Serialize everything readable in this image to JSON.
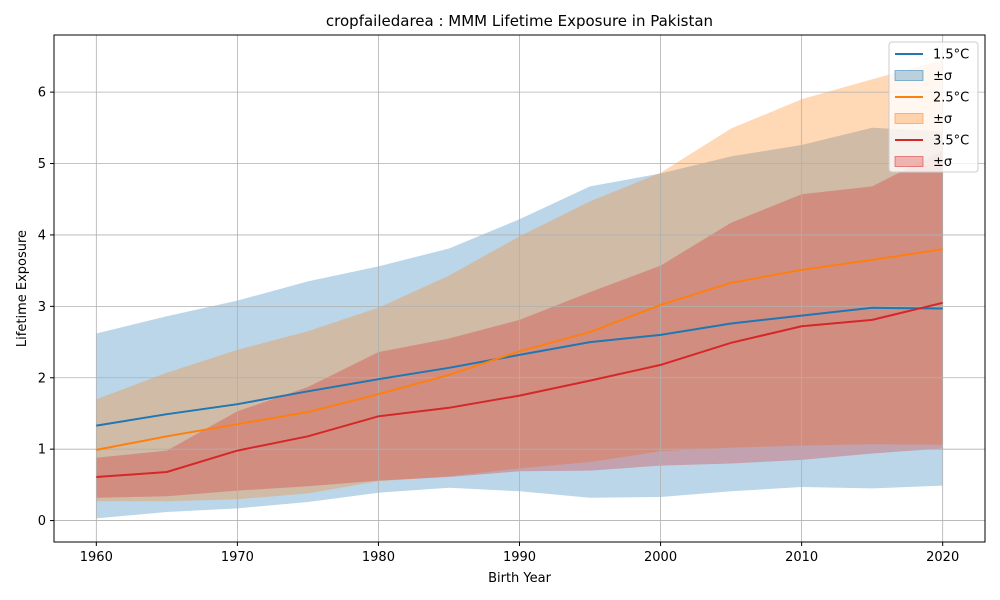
{
  "chart_data": {
    "type": "line",
    "title": "cropfailedarea : MMM Lifetime Exposure in Pakistan",
    "xlabel": "Birth Year",
    "ylabel": "Lifetime Exposure",
    "xlim": [
      1957,
      2023
    ],
    "ylim": [
      -0.3,
      6.8
    ],
    "xticks": [
      1960,
      1970,
      1980,
      1990,
      2000,
      2010,
      2020
    ],
    "yticks": [
      0,
      1,
      2,
      3,
      4,
      5,
      6
    ],
    "grid": true,
    "legend_position": "top-right",
    "x": [
      1960,
      1965,
      1970,
      1975,
      1980,
      1985,
      1990,
      1995,
      2000,
      2005,
      2010,
      2015,
      2020
    ],
    "series": [
      {
        "name": "1.5°C",
        "band_name": "±σ",
        "color": "#1f77b4",
        "mean": [
          1.33,
          1.49,
          1.63,
          1.81,
          1.98,
          2.14,
          2.32,
          2.5,
          2.6,
          2.76,
          2.87,
          2.98,
          2.97
        ],
        "lower": [
          0.03,
          0.12,
          0.17,
          0.26,
          0.39,
          0.46,
          0.41,
          0.32,
          0.33,
          0.41,
          0.47,
          0.45,
          0.49
        ],
        "upper": [
          2.62,
          2.86,
          3.08,
          3.35,
          3.56,
          3.81,
          4.22,
          4.68,
          4.86,
          5.1,
          5.26,
          5.5,
          5.45
        ]
      },
      {
        "name": "2.5°C",
        "band_name": "±σ",
        "color": "#ff7f0e",
        "mean": [
          0.99,
          1.18,
          1.35,
          1.52,
          1.77,
          2.04,
          2.37,
          2.64,
          3.02,
          3.33,
          3.51,
          3.65,
          3.8
        ],
        "lower": [
          0.27,
          0.27,
          0.3,
          0.38,
          0.55,
          0.62,
          0.73,
          0.82,
          0.97,
          1.02,
          1.05,
          1.07,
          1.06
        ],
        "upper": [
          1.7,
          2.07,
          2.39,
          2.65,
          2.98,
          3.43,
          3.98,
          4.47,
          4.87,
          5.49,
          5.9,
          6.18,
          6.45
        ]
      },
      {
        "name": "3.5°C",
        "band_name": "±σ",
        "color": "#d62728",
        "mean": [
          0.61,
          0.68,
          0.98,
          1.18,
          1.46,
          1.58,
          1.75,
          1.96,
          2.18,
          2.49,
          2.72,
          2.81,
          3.05
        ],
        "lower": [
          0.32,
          0.34,
          0.42,
          0.48,
          0.56,
          0.61,
          0.69,
          0.7,
          0.77,
          0.8,
          0.85,
          0.94,
          1.01
        ],
        "upper": [
          0.88,
          0.98,
          1.53,
          1.87,
          2.36,
          2.55,
          2.81,
          3.2,
          3.57,
          4.17,
          4.57,
          4.68,
          5.18
        ]
      }
    ]
  }
}
